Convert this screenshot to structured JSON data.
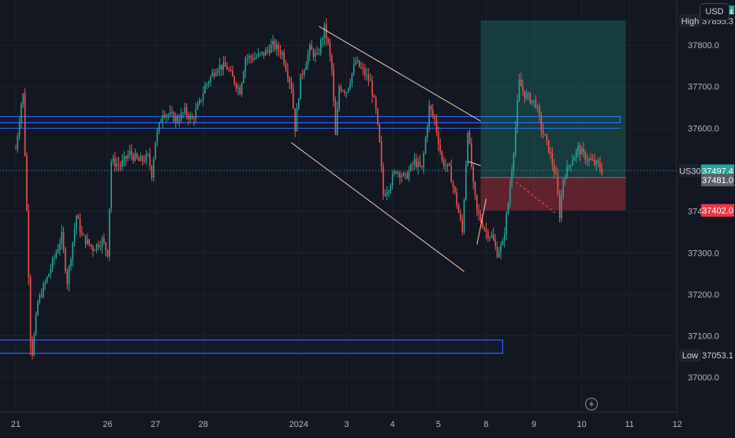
{
  "header": {
    "currency": "USD"
  },
  "chart_data": {
    "type": "candlestick",
    "symbol": "US30",
    "ylim": [
      36950,
      37885
    ],
    "y_ticks": [
      37000,
      37100,
      37200,
      37300,
      37400,
      37500,
      37600,
      37700,
      37800
    ],
    "x_ticks": [
      {
        "label": "21",
        "i": 0
      },
      {
        "label": "26",
        "i": 50
      },
      {
        "label": "27",
        "i": 76
      },
      {
        "label": "28",
        "i": 102
      },
      {
        "label": "2024",
        "i": 154
      },
      {
        "label": "3",
        "i": 180
      },
      {
        "label": "4",
        "i": 205
      },
      {
        "label": "5",
        "i": 230
      },
      {
        "label": "8",
        "i": 256
      },
      {
        "label": "9",
        "i": 282
      },
      {
        "label": "10",
        "i": 308
      },
      {
        "label": "11",
        "i": 334
      },
      {
        "label": "12",
        "i": 360
      }
    ],
    "n_slots": 380,
    "price_labels": {
      "target": {
        "value": "37859.4",
        "y": 37859.4,
        "color": "#22ab94"
      },
      "high": {
        "tag": "High",
        "value": "37855.3",
        "y": 37855.3
      },
      "current": {
        "tag": "US30",
        "value": "37497.4",
        "y": 37497.4,
        "color": "#26a69a"
      },
      "entry": {
        "value": "37481.0",
        "y": 37481.0,
        "color": "#5d606b"
      },
      "stop": {
        "value": "37402.0",
        "y": 37402.0,
        "color": "#f23645"
      },
      "low": {
        "tag": "Low",
        "value": "37053.1",
        "y": 37053.1
      }
    },
    "keypoints": [
      [
        0,
        37550
      ],
      [
        3,
        37660
      ],
      [
        4,
        37680
      ],
      [
        6,
        37400
      ],
      [
        8,
        37100
      ],
      [
        9,
        37060
      ],
      [
        12,
        37180
      ],
      [
        18,
        37250
      ],
      [
        25,
        37340
      ],
      [
        28,
        37230
      ],
      [
        33,
        37390
      ],
      [
        36,
        37340
      ],
      [
        42,
        37310
      ],
      [
        47,
        37330
      ],
      [
        50,
        37300
      ],
      [
        52,
        37520
      ],
      [
        57,
        37510
      ],
      [
        62,
        37540
      ],
      [
        67,
        37520
      ],
      [
        72,
        37530
      ],
      [
        74,
        37490
      ],
      [
        76,
        37570
      ],
      [
        80,
        37640
      ],
      [
        84,
        37630
      ],
      [
        88,
        37620
      ],
      [
        92,
        37640
      ],
      [
        96,
        37620
      ],
      [
        100,
        37660
      ],
      [
        103,
        37700
      ],
      [
        107,
        37730
      ],
      [
        110,
        37750
      ],
      [
        115,
        37745
      ],
      [
        118,
        37720
      ],
      [
        122,
        37690
      ],
      [
        125,
        37770
      ],
      [
        130,
        37770
      ],
      [
        135,
        37780
      ],
      [
        140,
        37800
      ],
      [
        145,
        37780
      ],
      [
        150,
        37700
      ],
      [
        152,
        37600
      ],
      [
        155,
        37720
      ],
      [
        160,
        37790
      ],
      [
        164,
        37770
      ],
      [
        168,
        37840
      ],
      [
        170,
        37800
      ],
      [
        172,
        37740
      ],
      [
        174,
        37580
      ],
      [
        176,
        37700
      ],
      [
        180,
        37690
      ],
      [
        185,
        37760
      ],
      [
        190,
        37730
      ],
      [
        193,
        37710
      ],
      [
        196,
        37640
      ],
      [
        198,
        37560
      ],
      [
        200,
        37440
      ],
      [
        203,
        37460
      ],
      [
        207,
        37500
      ],
      [
        212,
        37480
      ],
      [
        217,
        37520
      ],
      [
        221,
        37500
      ],
      [
        225,
        37650
      ],
      [
        228,
        37620
      ],
      [
        232,
        37520
      ],
      [
        236,
        37500
      ],
      [
        240,
        37420
      ],
      [
        243,
        37350
      ],
      [
        246,
        37600
      ],
      [
        249,
        37460
      ],
      [
        251,
        37400
      ],
      [
        253,
        37380
      ],
      [
        256,
        37350
      ],
      [
        259,
        37340
      ],
      [
        262,
        37300
      ],
      [
        265,
        37320
      ],
      [
        268,
        37420
      ],
      [
        271,
        37550
      ],
      [
        274,
        37710
      ],
      [
        277,
        37680
      ],
      [
        280,
        37670
      ],
      [
        283,
        37660
      ],
      [
        286,
        37600
      ],
      [
        290,
        37550
      ],
      [
        294,
        37480
      ],
      [
        296,
        37390
      ],
      [
        298,
        37480
      ],
      [
        302,
        37520
      ],
      [
        306,
        37550
      ],
      [
        310,
        37530
      ],
      [
        313,
        37520
      ],
      [
        317,
        37510
      ],
      [
        319,
        37497
      ]
    ],
    "zones": [
      {
        "name": "supply",
        "y1": 37628,
        "y2": 37613,
        "i1": 0,
        "i2": 329
      },
      {
        "name": "demand",
        "y1": 37090,
        "y2": 37058,
        "i1": 0,
        "i2": 265
      }
    ],
    "channel": {
      "upper": [
        [
          165,
          37845
        ],
        [
          253,
          37617
        ]
      ],
      "lower": [
        [
          150,
          37565
        ],
        [
          244,
          37255
        ]
      ]
    },
    "position": {
      "i1": 253,
      "i2": 332,
      "entry": 37481.0,
      "target": 37859.4,
      "stop": 37402.0
    }
  }
}
